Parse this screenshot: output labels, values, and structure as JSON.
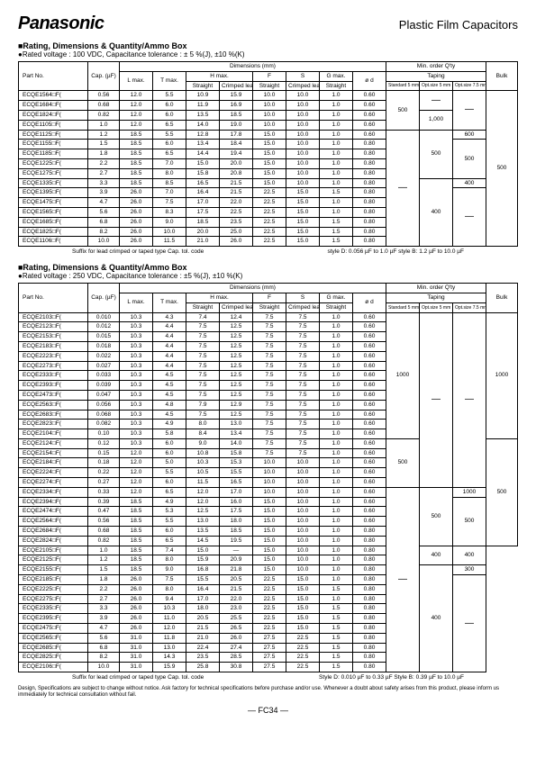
{
  "header": {
    "brand": "Panasonic",
    "rightTitle": "Plastic Film Capacitors"
  },
  "section1": {
    "title": "■Rating, Dimensions & Quantity/Ammo Box",
    "subtitle": "●Rated voltage : 100 VDC,   Capacitance tolerance : ± 5 %(J), ±10 %(K)",
    "footLeft": "Suffix for lead crimped or taped type\nCap. tol. code",
    "footRight": "style D: 0.056 µF to 1.0 µF\nstyle B: 1.2 µF to 10.0 µF"
  },
  "section2": {
    "title": "■Rating, Dimensions & Quantity/Ammo Box",
    "subtitle": "●Rated voltage : 250 VDC,   Capacitance tolerance : ±5 %(J), ±10 %(K)",
    "footLeft": "Suffix for lead crimped or taped type\nCap. tol. code",
    "footRight": "Style D: 0.010 µF to 0.33 µF\nStyle B: 0.39 µF to 10.0 µF"
  },
  "tableHeaders": {
    "partNo": "Part No.",
    "cap": "Cap.\n(µF)",
    "dimensions": "Dimensions (mm)",
    "minOrder": "Min. order Q'ty",
    "L": "L max.",
    "T": "T max.",
    "H": "H max.",
    "F": "F",
    "S": "S",
    "G": "G max.",
    "od": "ø d",
    "straight": "Straight",
    "crimped": "Crimped lead",
    "taping": "Taping",
    "std": "Standard\n5 mm",
    "opt5": "Opt.size\n5 mm",
    "opt75": "Opt.size\n7.5 mm",
    "bulk": "Bulk"
  },
  "table1": [
    {
      "part": "ECQE1564□F(",
      "cap": "0.56",
      "L": "12.0",
      "T": "5.5",
      "Hs": "10.9",
      "Hc": "15.9",
      "F": "10.0",
      "S": "10.0",
      "G": "1.0",
      "od": "0.60"
    },
    {
      "part": "ECQE1684□F(",
      "cap": "0.68",
      "L": "12.0",
      "T": "6.0",
      "Hs": "11.9",
      "Hc": "16.9",
      "F": "10.0",
      "S": "10.0",
      "G": "1.0",
      "od": "0.60"
    },
    {
      "part": "ECQE1824□F(",
      "cap": "0.82",
      "L": "12.0",
      "T": "6.0",
      "Hs": "13.5",
      "Hc": "18.5",
      "F": "10.0",
      "S": "10.0",
      "G": "1.0",
      "od": "0.60"
    },
    {
      "part": "ECQE1105□F(",
      "cap": "1.0",
      "L": "12.0",
      "T": "6.5",
      "Hs": "14.0",
      "Hc": "19.0",
      "F": "10.0",
      "S": "10.0",
      "G": "1.0",
      "od": "0.60"
    },
    {
      "part": "ECQE1125□F(",
      "cap": "1.2",
      "L": "18.5",
      "T": "5.5",
      "Hs": "12.8",
      "Hc": "17.8",
      "F": "15.0",
      "S": "10.0",
      "G": "1.0",
      "od": "0.60"
    },
    {
      "part": "ECQE1155□F(",
      "cap": "1.5",
      "L": "18.5",
      "T": "6.0",
      "Hs": "13.4",
      "Hc": "18.4",
      "F": "15.0",
      "S": "10.0",
      "G": "1.0",
      "od": "0.80"
    },
    {
      "part": "ECQE1185□F(",
      "cap": "1.8",
      "L": "18.5",
      "T": "6.5",
      "Hs": "14.4",
      "Hc": "19.4",
      "F": "15.0",
      "S": "10.0",
      "G": "1.0",
      "od": "0.80"
    },
    {
      "part": "ECQE1225□F(",
      "cap": "2.2",
      "L": "18.5",
      "T": "7.0",
      "Hs": "15.0",
      "Hc": "20.0",
      "F": "15.0",
      "S": "10.0",
      "G": "1.0",
      "od": "0.80"
    },
    {
      "part": "ECQE1275□F(",
      "cap": "2.7",
      "L": "18.5",
      "T": "8.0",
      "Hs": "15.8",
      "Hc": "20.8",
      "F": "15.0",
      "S": "10.0",
      "G": "1.0",
      "od": "0.80"
    },
    {
      "part": "ECQE1335□F(",
      "cap": "3.3",
      "L": "18.5",
      "T": "8.5",
      "Hs": "16.5",
      "Hc": "21.5",
      "F": "15.0",
      "S": "10.0",
      "G": "1.0",
      "od": "0.80"
    },
    {
      "part": "ECQE1395□F(",
      "cap": "3.9",
      "L": "26.0",
      "T": "7.0",
      "Hs": "16.4",
      "Hc": "21.5",
      "F": "22.5",
      "S": "15.0",
      "G": "1.5",
      "od": "0.80"
    },
    {
      "part": "ECQE1475□F(",
      "cap": "4.7",
      "L": "26.0",
      "T": "7.5",
      "Hs": "17.0",
      "Hc": "22.0",
      "F": "22.5",
      "S": "15.0",
      "G": "1.0",
      "od": "0.80"
    },
    {
      "part": "ECQE1565□F(",
      "cap": "5.6",
      "L": "26.0",
      "T": "8.3",
      "Hs": "17.5",
      "Hc": "22.5",
      "F": "22.5",
      "S": "15.0",
      "G": "1.0",
      "od": "0.80"
    },
    {
      "part": "ECQE1685□F(",
      "cap": "6.8",
      "L": "26.0",
      "T": "9.0",
      "Hs": "18.5",
      "Hc": "23.5",
      "F": "22.5",
      "S": "15.0",
      "G": "1.5",
      "od": "0.80"
    },
    {
      "part": "ECQE1825□F(",
      "cap": "8.2",
      "L": "26.0",
      "T": "10.0",
      "Hs": "20.0",
      "Hc": "25.0",
      "F": "22.5",
      "S": "15.0",
      "G": "1.5",
      "od": "0.80"
    },
    {
      "part": "ECQE1106□F(",
      "cap": "10.0",
      "L": "26.0",
      "T": "11.5",
      "Hs": "21.0",
      "Hc": "26.0",
      "F": "22.5",
      "S": "15.0",
      "G": "1.5",
      "od": "0.80"
    }
  ],
  "table1MinOrder": {
    "r1": {
      "std": "500",
      "opt5": "—",
      "opt75": "—",
      "span": 4,
      "bulkSpan": 4,
      "bulk1000": "1,000"
    },
    "r2": {
      "std": "—",
      "opt5": "500",
      "opt75": "600",
      "span1": 1
    },
    "r3": {
      "opt75": "500",
      "span": 4
    },
    "r4": {
      "opt5": "400",
      "opt75": "400",
      "span": 1
    },
    "bulk500": "500",
    "bulkSpan2": 12,
    "r5": {
      "std": "—",
      "opt5": "—",
      "opt75": "—",
      "span": 6
    }
  },
  "table2": [
    {
      "part": "ECQE2103□F(",
      "cap": "0.010",
      "L": "10.3",
      "T": "4.3",
      "Hs": "7.4",
      "Hc": "12.4",
      "F": "7.5",
      "S": "7.5",
      "G": "1.0",
      "od": "0.60"
    },
    {
      "part": "ECQE2123□F(",
      "cap": "0.012",
      "L": "10.3",
      "T": "4.4",
      "Hs": "7.5",
      "Hc": "12.5",
      "F": "7.5",
      "S": "7.5",
      "G": "1.0",
      "od": "0.60"
    },
    {
      "part": "ECQE2153□F(",
      "cap": "0.015",
      "L": "10.3",
      "T": "4.4",
      "Hs": "7.5",
      "Hc": "12.5",
      "F": "7.5",
      "S": "7.5",
      "G": "1.0",
      "od": "0.60"
    },
    {
      "part": "ECQE2183□F(",
      "cap": "0.018",
      "L": "10.3",
      "T": "4.4",
      "Hs": "7.5",
      "Hc": "12.5",
      "F": "7.5",
      "S": "7.5",
      "G": "1.0",
      "od": "0.60"
    },
    {
      "part": "ECQE2223□F(",
      "cap": "0.022",
      "L": "10.3",
      "T": "4.4",
      "Hs": "7.5",
      "Hc": "12.5",
      "F": "7.5",
      "S": "7.5",
      "G": "1.0",
      "od": "0.60"
    },
    {
      "part": "ECQE2273□F(",
      "cap": "0.027",
      "L": "10.3",
      "T": "4.4",
      "Hs": "7.5",
      "Hc": "12.5",
      "F": "7.5",
      "S": "7.5",
      "G": "1.0",
      "od": "0.60"
    },
    {
      "part": "ECQE2333□F(",
      "cap": "0.033",
      "L": "10.3",
      "T": "4.5",
      "Hs": "7.5",
      "Hc": "12.5",
      "F": "7.5",
      "S": "7.5",
      "G": "1.0",
      "od": "0.60"
    },
    {
      "part": "ECQE2393□F(",
      "cap": "0.039",
      "L": "10.3",
      "T": "4.5",
      "Hs": "7.5",
      "Hc": "12.5",
      "F": "7.5",
      "S": "7.5",
      "G": "1.0",
      "od": "0.60"
    },
    {
      "part": "ECQE2473□F(",
      "cap": "0.047",
      "L": "10.3",
      "T": "4.5",
      "Hs": "7.5",
      "Hc": "12.5",
      "F": "7.5",
      "S": "7.5",
      "G": "1.0",
      "od": "0.60"
    },
    {
      "part": "ECQE2563□F(",
      "cap": "0.056",
      "L": "10.3",
      "T": "4.8",
      "Hs": "7.9",
      "Hc": "12.9",
      "F": "7.5",
      "S": "7.5",
      "G": "1.0",
      "od": "0.60"
    },
    {
      "part": "ECQE2683□F(",
      "cap": "0.068",
      "L": "10.3",
      "T": "4.5",
      "Hs": "7.5",
      "Hc": "12.5",
      "F": "7.5",
      "S": "7.5",
      "G": "1.0",
      "od": "0.60"
    },
    {
      "part": "ECQE2823□F(",
      "cap": "0.082",
      "L": "10.3",
      "T": "4.9",
      "Hs": "8.0",
      "Hc": "13.0",
      "F": "7.5",
      "S": "7.5",
      "G": "1.0",
      "od": "0.60"
    },
    {
      "part": "ECQE2104□F(",
      "cap": "0.10",
      "L": "10.3",
      "T": "5.8",
      "Hs": "8.4",
      "Hc": "13.4",
      "F": "7.5",
      "S": "7.5",
      "G": "1.0",
      "od": "0.60"
    },
    {
      "part": "ECQE2124□F(",
      "cap": "0.12",
      "L": "10.3",
      "T": "6.0",
      "Hs": "9.0",
      "Hc": "14.0",
      "F": "7.5",
      "S": "7.5",
      "G": "1.0",
      "od": "0.60"
    },
    {
      "part": "ECQE2154□F(",
      "cap": "0.15",
      "L": "12.0",
      "T": "6.0",
      "Hs": "10.8",
      "Hc": "15.8",
      "F": "7.5",
      "S": "7.5",
      "G": "1.0",
      "od": "0.60"
    },
    {
      "part": "ECQE2184□F(",
      "cap": "0.18",
      "L": "12.0",
      "T": "5.0",
      "Hs": "10.3",
      "Hc": "15.3",
      "F": "10.0",
      "S": "10.0",
      "G": "1.0",
      "od": "0.60"
    },
    {
      "part": "ECQE2224□F(",
      "cap": "0.22",
      "L": "12.0",
      "T": "5.5",
      "Hs": "10.5",
      "Hc": "15.5",
      "F": "10.0",
      "S": "10.0",
      "G": "1.0",
      "od": "0.60"
    },
    {
      "part": "ECQE2274□F(",
      "cap": "0.27",
      "L": "12.0",
      "T": "6.0",
      "Hs": "11.5",
      "Hc": "16.5",
      "F": "10.0",
      "S": "10.0",
      "G": "1.0",
      "od": "0.60"
    },
    {
      "part": "ECQE2334□F(",
      "cap": "0.33",
      "L": "12.0",
      "T": "6.5",
      "Hs": "12.0",
      "Hc": "17.0",
      "F": "10.0",
      "S": "10.0",
      "G": "1.0",
      "od": "0.60"
    },
    {
      "part": "ECQE2394□F(",
      "cap": "0.39",
      "L": "18.5",
      "T": "4.9",
      "Hs": "12.0",
      "Hc": "16.0",
      "F": "15.0",
      "S": "10.0",
      "G": "1.0",
      "od": "0.60"
    },
    {
      "part": "ECQE2474□F(",
      "cap": "0.47",
      "L": "18.5",
      "T": "5.3",
      "Hs": "12.5",
      "Hc": "17.5",
      "F": "15.0",
      "S": "10.0",
      "G": "1.0",
      "od": "0.60"
    },
    {
      "part": "ECQE2564□F(",
      "cap": "0.56",
      "L": "18.5",
      "T": "5.5",
      "Hs": "13.0",
      "Hc": "18.0",
      "F": "15.0",
      "S": "10.0",
      "G": "1.0",
      "od": "0.60"
    },
    {
      "part": "ECQE2684□F(",
      "cap": "0.68",
      "L": "18.5",
      "T": "6.0",
      "Hs": "13.5",
      "Hc": "18.5",
      "F": "15.0",
      "S": "10.0",
      "G": "1.0",
      "od": "0.80"
    },
    {
      "part": "ECQE2824□F(",
      "cap": "0.82",
      "L": "18.5",
      "T": "6.5",
      "Hs": "14.5",
      "Hc": "19.5",
      "F": "15.0",
      "S": "10.0",
      "G": "1.0",
      "od": "0.80"
    },
    {
      "part": "ECQE2105□F(",
      "cap": "1.0",
      "L": "18.5",
      "T": "7.4",
      "Hs": "15.0",
      "Hc": "—",
      "F": "15.0",
      "S": "10.0",
      "G": "1.0",
      "od": "0.80"
    },
    {
      "part": "ECQE2125□F(",
      "cap": "1.2",
      "L": "18.5",
      "T": "8.0",
      "Hs": "15.9",
      "Hc": "20.9",
      "F": "15.0",
      "S": "10.0",
      "G": "1.0",
      "od": "0.80"
    },
    {
      "part": "ECQE2155□F(",
      "cap": "1.5",
      "L": "18.5",
      "T": "9.0",
      "Hs": "16.8",
      "Hc": "21.8",
      "F": "15.0",
      "S": "10.0",
      "G": "1.0",
      "od": "0.80"
    },
    {
      "part": "ECQE2185□F(",
      "cap": "1.8",
      "L": "26.0",
      "T": "7.5",
      "Hs": "15.5",
      "Hc": "20.5",
      "F": "22.5",
      "S": "15.0",
      "G": "1.0",
      "od": "0.80"
    },
    {
      "part": "ECQE2225□F(",
      "cap": "2.2",
      "L": "26.0",
      "T": "8.0",
      "Hs": "16.4",
      "Hc": "21.5",
      "F": "22.5",
      "S": "15.0",
      "G": "1.5",
      "od": "0.80"
    },
    {
      "part": "ECQE2275□F(",
      "cap": "2.7",
      "L": "26.0",
      "T": "9.4",
      "Hs": "17.0",
      "Hc": "22.0",
      "F": "22.5",
      "S": "15.0",
      "G": "1.0",
      "od": "0.80"
    },
    {
      "part": "ECQE2335□F(",
      "cap": "3.3",
      "L": "26.0",
      "T": "10.3",
      "Hs": "18.0",
      "Hc": "23.0",
      "F": "22.5",
      "S": "15.0",
      "G": "1.5",
      "od": "0.80"
    },
    {
      "part": "ECQE2395□F(",
      "cap": "3.9",
      "L": "26.0",
      "T": "11.0",
      "Hs": "20.5",
      "Hc": "25.5",
      "F": "22.5",
      "S": "15.0",
      "G": "1.5",
      "od": "0.80"
    },
    {
      "part": "ECQE2475□F(",
      "cap": "4.7",
      "L": "26.0",
      "T": "12.0",
      "Hs": "21.5",
      "Hc": "26.5",
      "F": "22.5",
      "S": "15.0",
      "G": "1.5",
      "od": "0.80"
    },
    {
      "part": "ECQE2565□F(",
      "cap": "5.6",
      "L": "31.0",
      "T": "11.8",
      "Hs": "21.0",
      "Hc": "26.0",
      "F": "27.5",
      "S": "22.5",
      "G": "1.5",
      "od": "0.80"
    },
    {
      "part": "ECQE2685□F(",
      "cap": "6.8",
      "L": "31.0",
      "T": "13.0",
      "Hs": "22.4",
      "Hc": "27.4",
      "F": "27.5",
      "S": "22.5",
      "G": "1.5",
      "od": "0.80"
    },
    {
      "part": "ECQE2825□F(",
      "cap": "8.2",
      "L": "31.0",
      "T": "14.3",
      "Hs": "23.5",
      "Hc": "28.5",
      "F": "27.5",
      "S": "22.5",
      "G": "1.5",
      "od": "0.80"
    },
    {
      "part": "ECQE2106□F(",
      "cap": "10.0",
      "L": "31.0",
      "T": "15.9",
      "Hs": "25.8",
      "Hc": "30.8",
      "F": "27.5",
      "S": "22.5",
      "G": "1.5",
      "od": "0.80"
    }
  ],
  "footer": {
    "note": "Design, Specifications are subject to change without notice.      Ask factory for technical specifications before purchase and/or use.\nWhenever a doubt about safety arises from this product, please inform us immediately for technical consultation without fail.",
    "page": "—  FC34  —"
  }
}
